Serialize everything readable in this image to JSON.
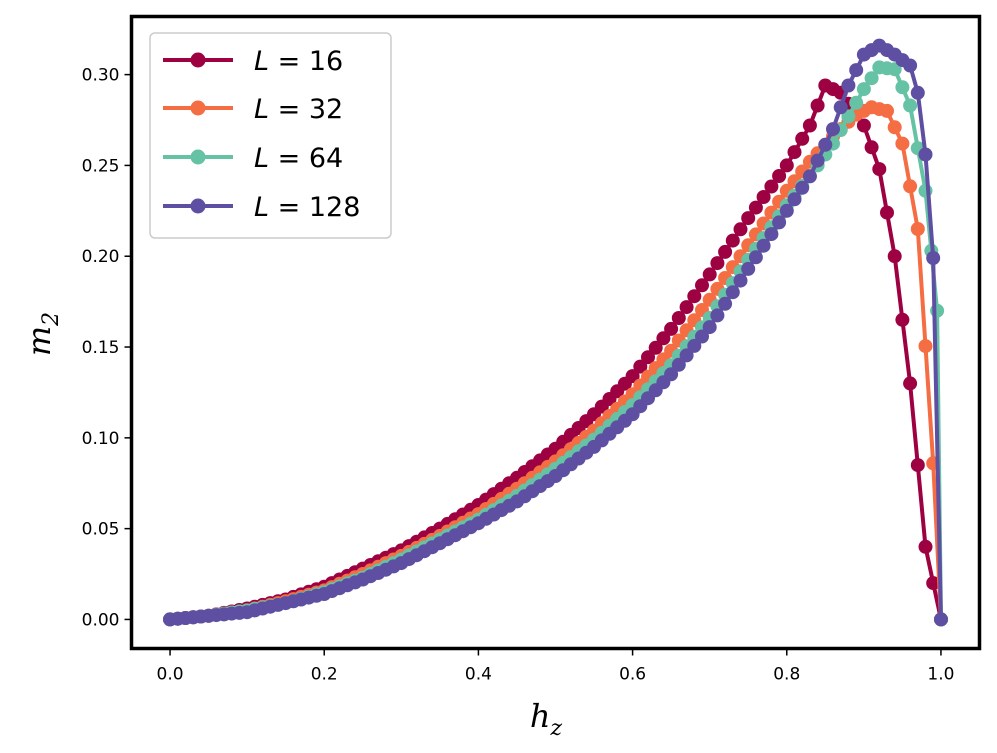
{
  "chart_data": {
    "type": "line",
    "xlabel": "h",
    "xlabel_sub": "z",
    "ylabel": "m",
    "ylabel_sub": "2",
    "xlim": [
      -0.05,
      1.05
    ],
    "ylim": [
      -0.016,
      0.332
    ],
    "xticks": [
      0.0,
      0.2,
      0.4,
      0.6,
      0.8,
      1.0
    ],
    "xtick_labels": [
      "0.0",
      "0.2",
      "0.4",
      "0.6",
      "0.8",
      "1.0"
    ],
    "yticks": [
      0.0,
      0.05,
      0.1,
      0.15,
      0.2,
      0.25,
      0.3
    ],
    "ytick_labels": [
      "0.00",
      "0.05",
      "0.10",
      "0.15",
      "0.20",
      "0.25",
      "0.30"
    ],
    "legend_position": "upper-left",
    "series": [
      {
        "name": "L = 16",
        "legend_italic": "L",
        "legend_rest": " = 16",
        "color": "#9e0142",
        "x": [
          0.0,
          0.05,
          0.1,
          0.15,
          0.2,
          0.25,
          0.3,
          0.35,
          0.4,
          0.45,
          0.5,
          0.55,
          0.6,
          0.65,
          0.7,
          0.75,
          0.8,
          0.83,
          0.85,
          0.87,
          0.9,
          0.92,
          0.94,
          0.96,
          0.98,
          1.0
        ],
        "y": [
          0.0,
          0.002,
          0.006,
          0.011,
          0.018,
          0.028,
          0.038,
          0.05,
          0.063,
          0.078,
          0.094,
          0.113,
          0.134,
          0.16,
          0.19,
          0.221,
          0.25,
          0.272,
          0.294,
          0.29,
          0.272,
          0.248,
          0.2,
          0.13,
          0.04,
          0.0
        ]
      },
      {
        "name": "L = 32",
        "legend_italic": "L",
        "legend_rest": " = 32",
        "color": "#f46d43",
        "x": [
          0.0,
          0.05,
          0.1,
          0.15,
          0.2,
          0.25,
          0.3,
          0.35,
          0.4,
          0.45,
          0.5,
          0.55,
          0.6,
          0.65,
          0.7,
          0.75,
          0.8,
          0.83,
          0.86,
          0.89,
          0.91,
          0.93,
          0.95,
          0.97,
          0.99,
          1.0
        ],
        "y": [
          0.0,
          0.002,
          0.005,
          0.01,
          0.016,
          0.025,
          0.035,
          0.046,
          0.058,
          0.072,
          0.087,
          0.104,
          0.124,
          0.148,
          0.176,
          0.206,
          0.236,
          0.252,
          0.266,
          0.278,
          0.282,
          0.28,
          0.262,
          0.215,
          0.086,
          0.0
        ]
      },
      {
        "name": "L = 64",
        "legend_italic": "L",
        "legend_rest": " = 64",
        "color": "#66c2a5",
        "x": [
          0.0,
          0.05,
          0.1,
          0.15,
          0.2,
          0.25,
          0.3,
          0.35,
          0.4,
          0.45,
          0.5,
          0.55,
          0.6,
          0.65,
          0.7,
          0.75,
          0.8,
          0.83,
          0.86,
          0.88,
          0.9,
          0.92,
          0.94,
          0.96,
          0.98,
          0.995,
          1.0
        ],
        "y": [
          0.0,
          0.002,
          0.005,
          0.009,
          0.015,
          0.023,
          0.033,
          0.044,
          0.055,
          0.068,
          0.083,
          0.099,
          0.118,
          0.14,
          0.166,
          0.198,
          0.228,
          0.244,
          0.262,
          0.277,
          0.292,
          0.304,
          0.303,
          0.283,
          0.236,
          0.17,
          0.0
        ]
      },
      {
        "name": "L = 128",
        "legend_italic": "L",
        "legend_rest": " = 128",
        "color": "#5e4fa2",
        "x": [
          0.0,
          0.05,
          0.1,
          0.15,
          0.2,
          0.25,
          0.3,
          0.35,
          0.4,
          0.45,
          0.5,
          0.55,
          0.6,
          0.65,
          0.7,
          0.75,
          0.8,
          0.83,
          0.86,
          0.88,
          0.9,
          0.92,
          0.94,
          0.96,
          0.97,
          0.98,
          0.99,
          1.0
        ],
        "y": [
          0.0,
          0.002,
          0.004,
          0.009,
          0.014,
          0.022,
          0.031,
          0.042,
          0.053,
          0.065,
          0.079,
          0.095,
          0.113,
          0.135,
          0.161,
          0.193,
          0.225,
          0.244,
          0.27,
          0.294,
          0.311,
          0.316,
          0.311,
          0.305,
          0.29,
          0.256,
          0.199,
          0.0
        ]
      }
    ]
  }
}
